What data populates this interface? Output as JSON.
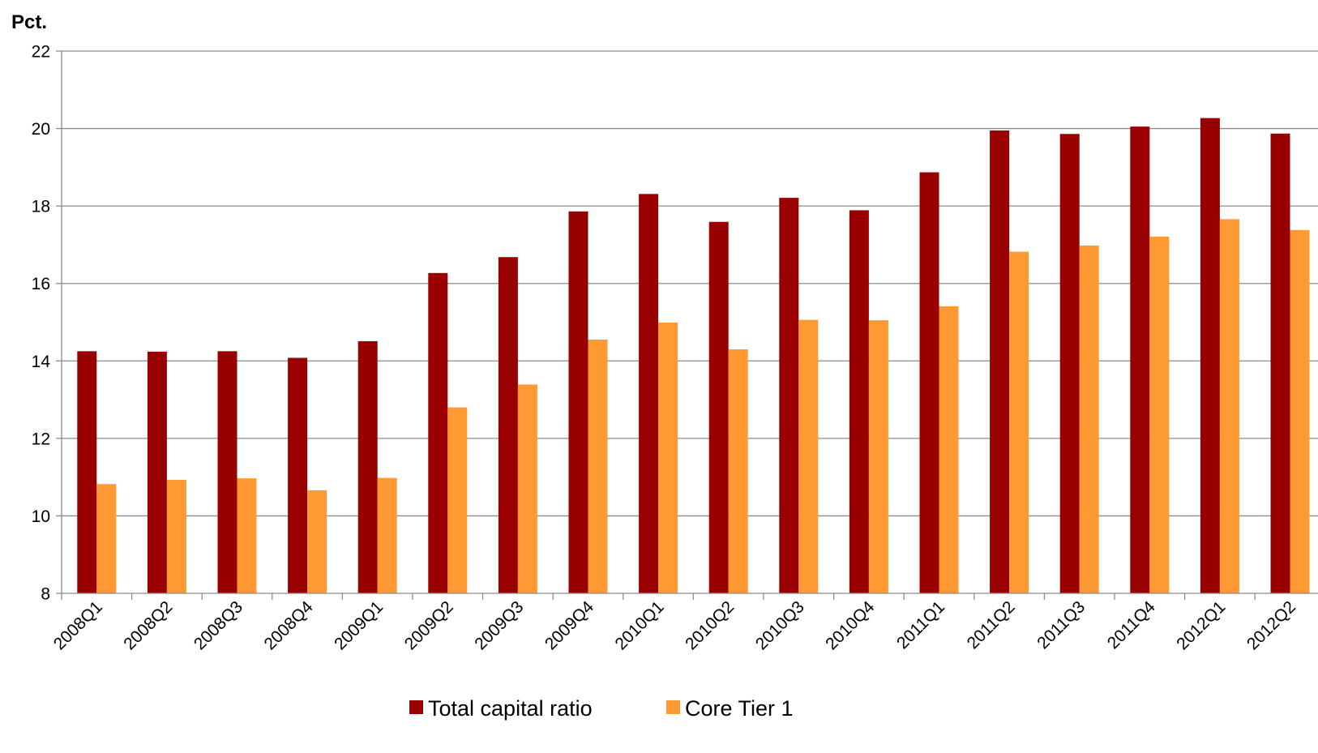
{
  "chart_data": {
    "type": "bar",
    "ylabel": "Pct.",
    "ylim": [
      8,
      22
    ],
    "yticks": [
      8,
      10,
      12,
      14,
      16,
      18,
      20,
      22
    ],
    "grid": true,
    "legend_position": "bottom",
    "categories": [
      "2008Q1",
      "2008Q2",
      "2008Q3",
      "2008Q4",
      "2009Q1",
      "2009Q2",
      "2009Q3",
      "2009Q4",
      "2010Q1",
      "2010Q2",
      "2010Q3",
      "2010Q4",
      "2011Q1",
      "2011Q2",
      "2011Q3",
      "2011Q4",
      "2012Q1",
      "2012Q2"
    ],
    "series": [
      {
        "name": "Total capital ratio",
        "color": "#990000",
        "values": [
          14.25,
          14.24,
          14.25,
          14.08,
          14.51,
          16.27,
          16.68,
          17.86,
          18.31,
          17.59,
          18.21,
          17.89,
          18.87,
          19.95,
          19.86,
          20.05,
          20.27,
          19.87
        ]
      },
      {
        "name": "Core Tier 1",
        "color": "#FF9933",
        "values": [
          10.82,
          10.93,
          10.97,
          10.66,
          10.98,
          12.8,
          13.39,
          14.55,
          14.99,
          14.3,
          15.06,
          15.05,
          15.41,
          16.82,
          16.98,
          17.21,
          17.66,
          17.38
        ]
      }
    ]
  }
}
